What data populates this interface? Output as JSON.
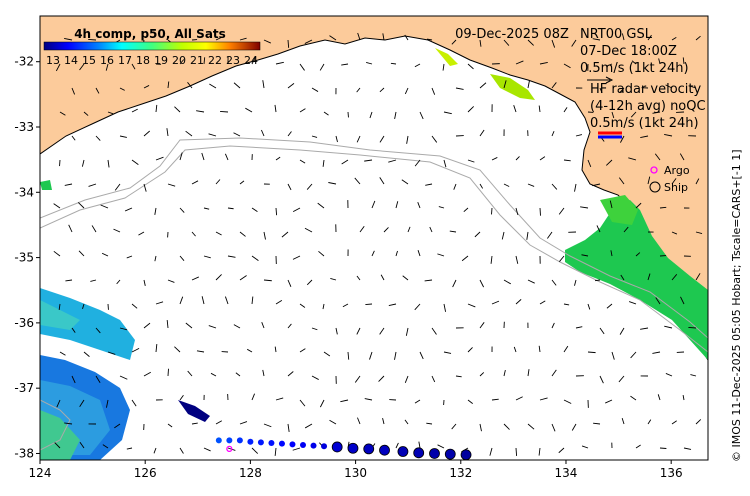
{
  "map": {
    "colorbar": {
      "title": "4h comp, p50, All Sats",
      "ticks": [
        "13",
        "14",
        "15",
        "16",
        "17",
        "18",
        "19",
        "20",
        "21",
        "22",
        "23",
        "24"
      ]
    },
    "header": {
      "date": "09-Dec-2025 08Z",
      "model_lines": [
        "NRT00 GSL",
        "07-Dec 18:00Z",
        "0.5m/s (1kt 24h)"
      ],
      "radar_lines": [
        "HF radar velocity",
        "(4-12h avg) noQC",
        "0.5m/s (1kt 24h)"
      ]
    },
    "legend": {
      "argo_label": "Argo",
      "ship_label": "Ship"
    },
    "credit": "© IMOS 11-Dec-2025 05:05 Hobart; Tscale=CARS+[-1 1]",
    "x_axis": {
      "ticks": [
        "124",
        "126",
        "128",
        "130",
        "132",
        "134",
        "136"
      ],
      "min": 124,
      "max": 136.7
    },
    "y_axis": {
      "ticks": [
        "-32",
        "-33",
        "-34",
        "-35",
        "-36",
        "-37",
        "-38"
      ],
      "min": -38.1,
      "max": -31.3
    },
    "colors": {
      "land": "#FCCB9B",
      "sea": "#FFFFFF",
      "argo": "#FF00FF",
      "ship_edge": "#000000"
    },
    "ship_track": [
      {
        "lon": 127.4,
        "lat": -37.8,
        "temp": 15.2
      },
      {
        "lon": 127.6,
        "lat": -37.8,
        "temp": 15.0
      },
      {
        "lon": 127.8,
        "lat": -37.8,
        "temp": 14.8
      },
      {
        "lon": 128.0,
        "lat": -37.82,
        "temp": 14.6
      },
      {
        "lon": 128.2,
        "lat": -37.83,
        "temp": 14.5
      },
      {
        "lon": 128.4,
        "lat": -37.84,
        "temp": 14.4
      },
      {
        "lon": 128.6,
        "lat": -37.85,
        "temp": 14.3
      },
      {
        "lon": 128.8,
        "lat": -37.86,
        "temp": 14.2
      },
      {
        "lon": 129.0,
        "lat": -37.87,
        "temp": 14.1
      },
      {
        "lon": 129.2,
        "lat": -37.88,
        "temp": 14.0
      },
      {
        "lon": 129.4,
        "lat": -37.89,
        "temp": 13.9
      },
      {
        "lon": 129.65,
        "lat": -37.9,
        "temp": 13.8
      },
      {
        "lon": 129.95,
        "lat": -37.92,
        "temp": 13.7
      },
      {
        "lon": 130.25,
        "lat": -37.93,
        "temp": 13.6
      },
      {
        "lon": 130.55,
        "lat": -37.95,
        "temp": 13.6
      },
      {
        "lon": 130.9,
        "lat": -37.97,
        "temp": 13.5
      },
      {
        "lon": 131.2,
        "lat": -37.99,
        "temp": 13.5
      },
      {
        "lon": 131.5,
        "lat": -38.0,
        "temp": 13.4
      },
      {
        "lon": 131.8,
        "lat": -38.01,
        "temp": 13.4
      },
      {
        "lon": 132.1,
        "lat": -38.02,
        "temp": 13.3
      }
    ],
    "argo_floats": [
      {
        "lon": 127.6,
        "lat": -37.93
      }
    ]
  }
}
